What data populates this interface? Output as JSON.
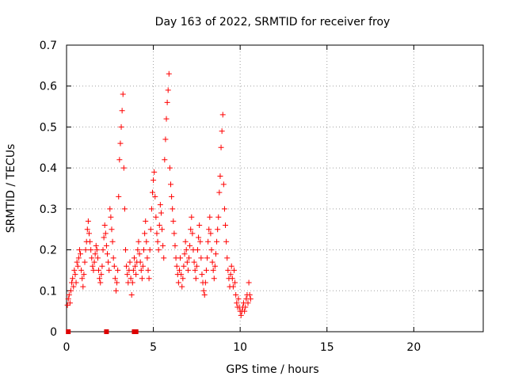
{
  "chart_data": {
    "type": "scatter",
    "title": "Day 163 of 2022, SRMTID for receiver froy",
    "xlabel": "GPS time / hours",
    "ylabel": "SRMTID / TECUs",
    "xlim": [
      0,
      24
    ],
    "ylim": [
      0,
      0.7
    ],
    "xticks": [
      0,
      5,
      10,
      15,
      20
    ],
    "xtick_labels": [
      "0",
      "5",
      "10",
      "15",
      "20"
    ],
    "yticks": [
      0,
      0.1,
      0.2,
      0.3,
      0.4,
      0.5,
      0.6,
      0.7
    ],
    "ytick_labels": [
      "0",
      "0.1",
      "0.2",
      "0.3",
      "0.4",
      "0.5",
      "0.6",
      "0.7"
    ],
    "grid": true,
    "marker": "plus",
    "series_color": "#ff0000",
    "square_color": "#dd0000",
    "points": [
      [
        0.05,
        0.065
      ],
      [
        0.1,
        0.08
      ],
      [
        0.15,
        0.09
      ],
      [
        0.2,
        0.07
      ],
      [
        0.25,
        0.1
      ],
      [
        0.3,
        0.12
      ],
      [
        0.35,
        0.13
      ],
      [
        0.4,
        0.11
      ],
      [
        0.45,
        0.15
      ],
      [
        0.5,
        0.14
      ],
      [
        0.55,
        0.12
      ],
      [
        0.6,
        0.17
      ],
      [
        0.65,
        0.16
      ],
      [
        0.7,
        0.18
      ],
      [
        0.75,
        0.2
      ],
      [
        0.8,
        0.19
      ],
      [
        0.85,
        0.15
      ],
      [
        0.9,
        0.13
      ],
      [
        0.95,
        0.11
      ],
      [
        1.0,
        0.14
      ],
      [
        1.05,
        0.17
      ],
      [
        1.1,
        0.2
      ],
      [
        1.15,
        0.22
      ],
      [
        1.2,
        0.25
      ],
      [
        1.25,
        0.27
      ],
      [
        1.3,
        0.24
      ],
      [
        1.35,
        0.22
      ],
      [
        1.4,
        0.2
      ],
      [
        1.45,
        0.18
      ],
      [
        1.5,
        0.16
      ],
      [
        1.55,
        0.15
      ],
      [
        1.6,
        0.17
      ],
      [
        1.65,
        0.19
      ],
      [
        1.7,
        0.21
      ],
      [
        1.75,
        0.2
      ],
      [
        1.8,
        0.18
      ],
      [
        1.85,
        0.15
      ],
      [
        1.9,
        0.13
      ],
      [
        1.95,
        0.12
      ],
      [
        2.0,
        0.14
      ],
      [
        2.05,
        0.16
      ],
      [
        2.1,
        0.2
      ],
      [
        2.15,
        0.23
      ],
      [
        2.2,
        0.26
      ],
      [
        2.25,
        0.24
      ],
      [
        2.3,
        0.21
      ],
      [
        2.35,
        0.19
      ],
      [
        2.4,
        0.17
      ],
      [
        2.45,
        0.15
      ],
      [
        2.5,
        0.3
      ],
      [
        2.55,
        0.28
      ],
      [
        2.6,
        0.25
      ],
      [
        2.65,
        0.22
      ],
      [
        2.7,
        0.18
      ],
      [
        2.75,
        0.16
      ],
      [
        2.8,
        0.13
      ],
      [
        2.85,
        0.1
      ],
      [
        2.9,
        0.12
      ],
      [
        2.95,
        0.15
      ],
      [
        3.0,
        0.33
      ],
      [
        3.05,
        0.42
      ],
      [
        3.1,
        0.46
      ],
      [
        3.15,
        0.5
      ],
      [
        3.2,
        0.54
      ],
      [
        3.25,
        0.58
      ],
      [
        3.3,
        0.4
      ],
      [
        3.35,
        0.3
      ],
      [
        3.4,
        0.2
      ],
      [
        3.45,
        0.16
      ],
      [
        3.5,
        0.14
      ],
      [
        3.55,
        0.12
      ],
      [
        3.6,
        0.15
      ],
      [
        3.65,
        0.17
      ],
      [
        3.7,
        0.13
      ],
      [
        3.75,
        0.09
      ],
      [
        3.8,
        0.12
      ],
      [
        3.85,
        0.15
      ],
      [
        3.9,
        0.18
      ],
      [
        3.95,
        0.16
      ],
      [
        4.0,
        0.14
      ],
      [
        4.05,
        0.17
      ],
      [
        4.1,
        0.2
      ],
      [
        4.15,
        0.22
      ],
      [
        4.2,
        0.19
      ],
      [
        4.25,
        0.17
      ],
      [
        4.3,
        0.15
      ],
      [
        4.35,
        0.13
      ],
      [
        4.4,
        0.16
      ],
      [
        4.45,
        0.2
      ],
      [
        4.5,
        0.24
      ],
      [
        4.55,
        0.27
      ],
      [
        4.6,
        0.22
      ],
      [
        4.65,
        0.18
      ],
      [
        4.7,
        0.15
      ],
      [
        4.75,
        0.13
      ],
      [
        4.8,
        0.2
      ],
      [
        4.85,
        0.25
      ],
      [
        4.9,
        0.3
      ],
      [
        4.95,
        0.34
      ],
      [
        5.0,
        0.37
      ],
      [
        5.05,
        0.39
      ],
      [
        5.1,
        0.33
      ],
      [
        5.15,
        0.28
      ],
      [
        5.2,
        0.24
      ],
      [
        5.25,
        0.22
      ],
      [
        5.3,
        0.2
      ],
      [
        5.35,
        0.26
      ],
      [
        5.4,
        0.31
      ],
      [
        5.45,
        0.29
      ],
      [
        5.5,
        0.25
      ],
      [
        5.55,
        0.21
      ],
      [
        5.6,
        0.18
      ],
      [
        5.65,
        0.42
      ],
      [
        5.7,
        0.47
      ],
      [
        5.75,
        0.52
      ],
      [
        5.8,
        0.56
      ],
      [
        5.85,
        0.59
      ],
      [
        5.9,
        0.63
      ],
      [
        5.95,
        0.4
      ],
      [
        6.0,
        0.36
      ],
      [
        6.05,
        0.33
      ],
      [
        6.1,
        0.3
      ],
      [
        6.15,
        0.27
      ],
      [
        6.2,
        0.24
      ],
      [
        6.25,
        0.21
      ],
      [
        6.3,
        0.18
      ],
      [
        6.35,
        0.16
      ],
      [
        6.4,
        0.14
      ],
      [
        6.45,
        0.12
      ],
      [
        6.5,
        0.15
      ],
      [
        6.55,
        0.18
      ],
      [
        6.6,
        0.14
      ],
      [
        6.65,
        0.11
      ],
      [
        6.7,
        0.13
      ],
      [
        6.75,
        0.16
      ],
      [
        6.8,
        0.19
      ],
      [
        6.85,
        0.22
      ],
      [
        6.9,
        0.2
      ],
      [
        6.95,
        0.17
      ],
      [
        7.0,
        0.15
      ],
      [
        7.05,
        0.18
      ],
      [
        7.1,
        0.21
      ],
      [
        7.15,
        0.25
      ],
      [
        7.2,
        0.28
      ],
      [
        7.25,
        0.24
      ],
      [
        7.3,
        0.2
      ],
      [
        7.35,
        0.17
      ],
      [
        7.4,
        0.15
      ],
      [
        7.45,
        0.13
      ],
      [
        7.5,
        0.16
      ],
      [
        7.55,
        0.2
      ],
      [
        7.6,
        0.23
      ],
      [
        7.65,
        0.26
      ],
      [
        7.7,
        0.22
      ],
      [
        7.75,
        0.18
      ],
      [
        7.8,
        0.14
      ],
      [
        7.85,
        0.12
      ],
      [
        7.9,
        0.1
      ],
      [
        7.95,
        0.09
      ],
      [
        8.0,
        0.12
      ],
      [
        8.05,
        0.15
      ],
      [
        8.1,
        0.18
      ],
      [
        8.15,
        0.22
      ],
      [
        8.2,
        0.25
      ],
      [
        8.25,
        0.28
      ],
      [
        8.3,
        0.24
      ],
      [
        8.35,
        0.2
      ],
      [
        8.4,
        0.17
      ],
      [
        8.45,
        0.15
      ],
      [
        8.5,
        0.13
      ],
      [
        8.55,
        0.16
      ],
      [
        8.6,
        0.19
      ],
      [
        8.65,
        0.22
      ],
      [
        8.7,
        0.25
      ],
      [
        8.75,
        0.28
      ],
      [
        8.8,
        0.34
      ],
      [
        8.85,
        0.38
      ],
      [
        8.9,
        0.45
      ],
      [
        8.95,
        0.49
      ],
      [
        9.0,
        0.53
      ],
      [
        9.05,
        0.36
      ],
      [
        9.1,
        0.3
      ],
      [
        9.15,
        0.26
      ],
      [
        9.2,
        0.22
      ],
      [
        9.25,
        0.18
      ],
      [
        9.3,
        0.15
      ],
      [
        9.35,
        0.13
      ],
      [
        9.4,
        0.11
      ],
      [
        9.45,
        0.14
      ],
      [
        9.5,
        0.16
      ],
      [
        9.55,
        0.13
      ],
      [
        9.6,
        0.11
      ],
      [
        9.65,
        0.15
      ],
      [
        9.7,
        0.12
      ],
      [
        9.75,
        0.09
      ],
      [
        9.8,
        0.07
      ],
      [
        9.85,
        0.06
      ],
      [
        9.9,
        0.08
      ],
      [
        9.95,
        0.06
      ],
      [
        10.0,
        0.05
      ],
      [
        10.05,
        0.04
      ],
      [
        10.1,
        0.05
      ],
      [
        10.15,
        0.06
      ],
      [
        10.2,
        0.07
      ],
      [
        10.25,
        0.05
      ],
      [
        10.3,
        0.06
      ],
      [
        10.35,
        0.08
      ],
      [
        10.4,
        0.09
      ],
      [
        10.45,
        0.07
      ],
      [
        10.5,
        0.12
      ],
      [
        10.55,
        0.09
      ],
      [
        10.6,
        0.08
      ]
    ],
    "zero_markers": [
      [
        0.1,
        0
      ],
      [
        2.3,
        0
      ],
      [
        3.9,
        0
      ],
      [
        4.0,
        0
      ]
    ]
  }
}
